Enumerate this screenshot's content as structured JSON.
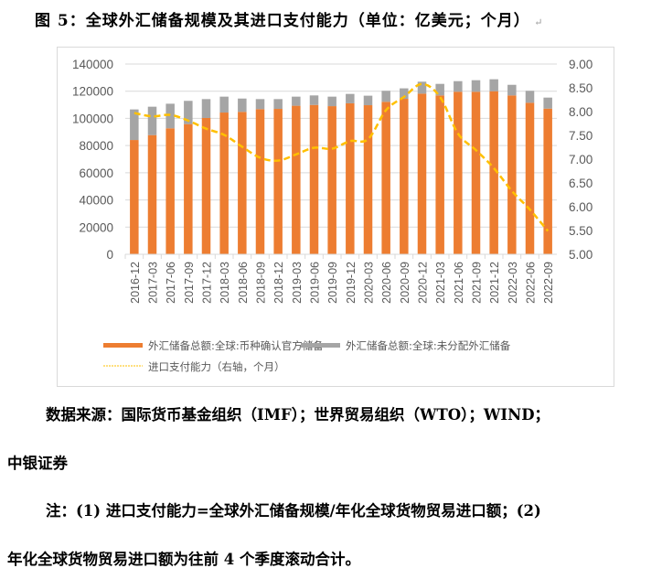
{
  "title": "图 5：全球外汇储备规模及其进口支付能力（单位：亿美元；个月）",
  "chart_data": {
    "type": "bar+line",
    "categories": [
      "2016-12",
      "2017-03",
      "2017-06",
      "2017-09",
      "2017-12",
      "2018-03",
      "2018-06",
      "2018-09",
      "2018-12",
      "2019-03",
      "2019-06",
      "2019-09",
      "2019-12",
      "2020-03",
      "2020-06",
      "2020-09",
      "2020-12",
      "2021-03",
      "2021-06",
      "2021-09",
      "2021-12",
      "2022-03",
      "2022-06",
      "2022-09"
    ],
    "series": [
      {
        "name": "外汇储备总额:全球:币种确认官方储备",
        "type": "stacked-bar",
        "axis": "left",
        "color": "#ed7d31",
        "values": [
          84100,
          87700,
          92700,
          95800,
          100300,
          104300,
          104800,
          106800,
          107000,
          109300,
          109900,
          109000,
          111100,
          109700,
          112200,
          114400,
          118200,
          116900,
          119600,
          119600,
          120000,
          116900,
          111500,
          107200
        ]
      },
      {
        "name": "外汇储备总额:全球:未分配外汇储备",
        "type": "stacked-bar",
        "axis": "left",
        "color": "#a5a5a5",
        "values": [
          22500,
          20900,
          18100,
          17100,
          13900,
          11700,
          9800,
          7400,
          7200,
          6700,
          7000,
          7000,
          6900,
          7000,
          8100,
          7700,
          8800,
          8500,
          7800,
          8500,
          8800,
          7800,
          8800,
          8100
        ]
      },
      {
        "name": "进口支付能力（右轴，个月）",
        "type": "line",
        "axis": "right",
        "color": "#ffc000",
        "dash": true,
        "values": [
          7.97,
          7.9,
          7.93,
          7.81,
          7.64,
          7.51,
          7.26,
          7.03,
          6.97,
          7.1,
          7.24,
          7.22,
          7.38,
          7.42,
          8.03,
          8.31,
          8.58,
          8.31,
          7.54,
          7.19,
          6.81,
          6.33,
          5.94,
          5.49
        ]
      }
    ],
    "y_left": {
      "min": 0,
      "max": 140000,
      "ticks": [
        "0",
        "20000",
        "40000",
        "60000",
        "80000",
        "100000",
        "120000",
        "140000"
      ]
    },
    "y_right": {
      "min": 5,
      "max": 9,
      "ticks": [
        "5.00",
        "5.50",
        "6.00",
        "6.50",
        "7.00",
        "7.50",
        "8.00",
        "8.50",
        "9.00"
      ]
    },
    "grid": true,
    "legend": "bottom"
  },
  "source_line1": "数据来源：国际货币基金组织（IMF）；世界贸易组织（WTO）；WIND；",
  "source_line2": "中银证券",
  "note_line1": "注：(1) 进口支付能力=全球外汇储备规模/年化全球货物贸易进口额；(2)",
  "note_line2": "年化全球货物贸易进口额为往前 4 个季度滚动合计。"
}
